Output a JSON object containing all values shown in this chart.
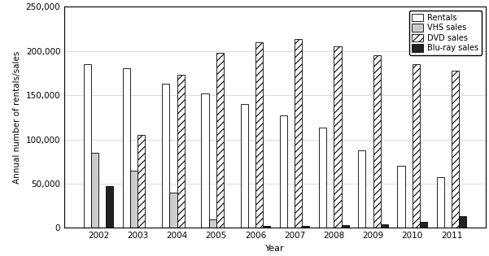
{
  "years": [
    2002,
    2003,
    2004,
    2005,
    2006,
    2007,
    2008,
    2009,
    2010,
    2011
  ],
  "rentals": [
    185000,
    180000,
    163000,
    152000,
    140000,
    127000,
    113000,
    88000,
    70000,
    57000
  ],
  "vhs_sales": [
    85000,
    65000,
    40000,
    10000,
    0,
    0,
    0,
    0,
    0,
    0
  ],
  "dvd_sales": [
    0,
    105000,
    173000,
    198000,
    210000,
    213000,
    205000,
    195000,
    185000,
    178000
  ],
  "bluray_sales": [
    47000,
    0,
    0,
    0,
    2000,
    2000,
    3000,
    4000,
    7000,
    13000
  ],
  "xlabel": "Year",
  "ylabel": "Annual number of rentals/sales",
  "ylim": [
    0,
    250000
  ],
  "yticks": [
    0,
    50000,
    100000,
    150000,
    200000,
    250000
  ],
  "bar_width": 0.19,
  "rentals_color": "#ffffff",
  "vhs_color": "#cccccc",
  "dvd_facecolor": "#ffffff",
  "dvd_hatch": "////",
  "dvd_hatch_color": "#555555",
  "bluray_color": "#222222",
  "edge_color": "#000000",
  "background_color": "#ffffff",
  "grid_color": "#cccccc",
  "legend_labels": [
    "Rentals",
    "VHS sales",
    "DVD sales",
    "Blu-ray sales"
  ],
  "figsize": [
    6.01,
    3.15
  ],
  "dpi": 100
}
